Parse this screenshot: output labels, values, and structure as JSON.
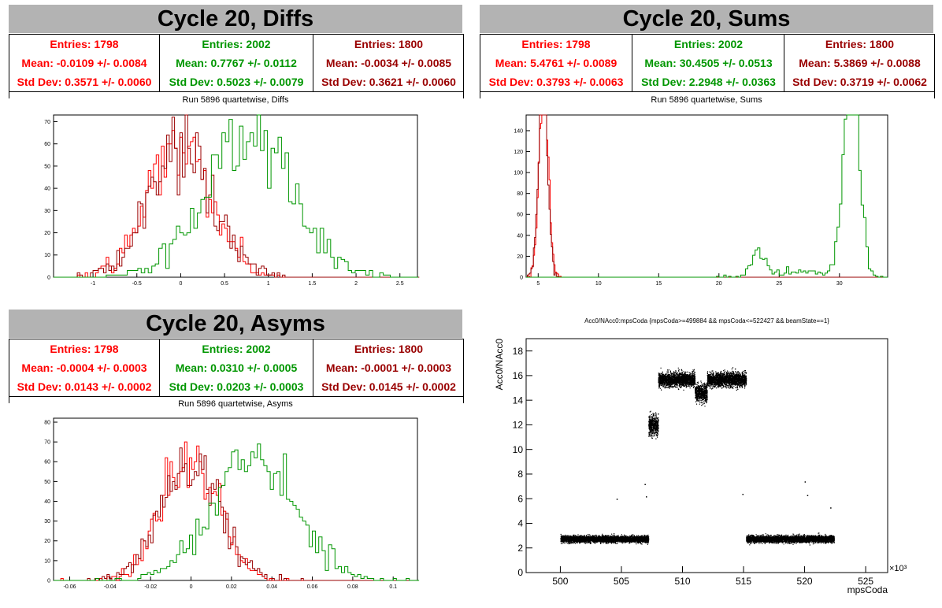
{
  "colors": {
    "red": "#ff0000",
    "green": "#009600",
    "darkred": "#990000",
    "black": "#000000",
    "title_bg": "#b3b3b3"
  },
  "panels": [
    {
      "id": "diffs",
      "title": "Cycle 20, Diffs",
      "stats": [
        {
          "entries": "Entries: 1798",
          "mean": "Mean: -0.0109 +/- 0.0084",
          "std": "Std Dev: 0.3571 +/- 0.0060",
          "color": "#ff0000"
        },
        {
          "entries": "Entries: 2002",
          "mean": "Mean: 0.7767 +/- 0.0112",
          "std": "Std Dev: 0.5023 +/- 0.0079",
          "color": "#009600"
        },
        {
          "entries": "Entries: 1800",
          "mean": "Mean: -0.0034 +/- 0.0085",
          "std": "Std Dev: 0.3621 +/- 0.0060",
          "color": "#990000"
        }
      ],
      "subtitle": "Run 5896 quartetwise, Diffs"
    },
    {
      "id": "sums",
      "title": "Cycle 20, Sums",
      "stats": [
        {
          "entries": "Entries: 1798",
          "mean": "Mean: 5.4761 +/- 0.0089",
          "std": "Std Dev: 0.3793 +/- 0.0063",
          "color": "#ff0000"
        },
        {
          "entries": "Entries: 2002",
          "mean": "Mean: 30.4505 +/- 0.0513",
          "std": "Std Dev: 2.2948 +/- 0.0363",
          "color": "#009600"
        },
        {
          "entries": "Entries: 1800",
          "mean": "Mean: 5.3869 +/- 0.0088",
          "std": "Std Dev: 0.3719 +/- 0.0062",
          "color": "#990000"
        }
      ],
      "subtitle": "Run 5896 quartetwise, Sums"
    },
    {
      "id": "asyms",
      "title": "Cycle 20, Asyms",
      "stats": [
        {
          "entries": "Entries: 1798",
          "mean": "Mean: -0.0004 +/- 0.0003",
          "std": "Std Dev: 0.0143 +/- 0.0002",
          "color": "#ff0000"
        },
        {
          "entries": "Entries: 2002",
          "mean": "Mean: 0.0310 +/- 0.0005",
          "std": "Std Dev: 0.0203 +/- 0.0003",
          "color": "#009600"
        },
        {
          "entries": "Entries: 1800",
          "mean": "Mean: -0.0001 +/- 0.0003",
          "std": "Std Dev: 0.0145 +/- 0.0002",
          "color": "#990000"
        }
      ],
      "subtitle": "Run 5896 quartetwise, Asyms"
    }
  ],
  "chart_data": [
    {
      "id": "diffs",
      "type": "histogram",
      "xlim": [
        -1.45,
        2.7
      ],
      "ylim": [
        0,
        73
      ],
      "x_ticks": [
        -1,
        -0.5,
        0,
        0.5,
        1,
        1.5,
        2,
        2.5
      ],
      "y_ticks": [
        0,
        10,
        20,
        30,
        40,
        50,
        60,
        70
      ],
      "series": [
        {
          "color": "#ff0000",
          "mean": -0.0109,
          "std": 0.3571,
          "entries": 1798,
          "bin_width": 0.03
        },
        {
          "color": "#990000",
          "mean": -0.0034,
          "std": 0.3621,
          "entries": 1800,
          "bin_width": 0.03
        },
        {
          "color": "#009600",
          "mean": 0.7767,
          "std": 0.5023,
          "entries": 2002,
          "bin_width": 0.04
        }
      ]
    },
    {
      "id": "sums",
      "type": "histogram",
      "xlim": [
        4,
        34
      ],
      "ylim": [
        0,
        155
      ],
      "x_ticks": [
        5,
        10,
        15,
        20,
        25,
        30
      ],
      "y_ticks": [
        0,
        20,
        40,
        60,
        80,
        100,
        120,
        140
      ],
      "series": [
        {
          "color": "#ff0000",
          "mean": 5.4761,
          "std": 0.3793,
          "entries": 1798,
          "bin_width": 0.1
        },
        {
          "color": "#990000",
          "mean": 5.3869,
          "std": 0.3719,
          "entries": 1800,
          "bin_width": 0.1
        },
        {
          "color": "#009600",
          "entries": 2002,
          "bin_width": 0.2,
          "components": [
            {
              "mean": 31.0,
              "std": 0.6,
              "weight": 0.83
            },
            {
              "mean": 23.3,
              "std": 0.55,
              "weight": 0.08
            },
            {
              "mean": 27.0,
              "std": 2.5,
              "weight": 0.09
            }
          ]
        }
      ]
    },
    {
      "id": "asyms",
      "type": "histogram",
      "xlim": [
        -0.068,
        0.112
      ],
      "ylim": [
        0,
        82
      ],
      "x_ticks": [
        -0.06,
        -0.04,
        -0.02,
        0,
        0.02,
        0.04,
        0.06,
        0.08,
        0.1
      ],
      "y_ticks": [
        0,
        10,
        20,
        30,
        40,
        50,
        60,
        70,
        80
      ],
      "series": [
        {
          "color": "#ff0000",
          "mean": -0.0004,
          "std": 0.0143,
          "entries": 1798,
          "bin_width": 0.0012
        },
        {
          "color": "#990000",
          "mean": -0.0001,
          "std": 0.0145,
          "entries": 1800,
          "bin_width": 0.0012
        },
        {
          "color": "#009600",
          "mean": 0.031,
          "std": 0.0203,
          "entries": 2002,
          "bin_width": 0.0016
        }
      ]
    },
    {
      "id": "acc0",
      "type": "scatter",
      "title": "Acc0/NAcc0:mpsCoda {mpsCoda>=499884 && mpsCoda<=522427 && beamState==1}",
      "xlabel": "mpsCoda",
      "ylabel": "Acc0/NAcc0",
      "x_exponent": "×10³",
      "xlim": [
        497.2,
        526.8
      ],
      "ylim": [
        0,
        19
      ],
      "x_ticks": [
        500,
        505,
        510,
        515,
        520,
        525
      ],
      "y_ticks": [
        0,
        2,
        4,
        6,
        8,
        10,
        12,
        14,
        16,
        18
      ],
      "segments": [
        {
          "x": [
            500,
            507.2
          ],
          "y": 2.75,
          "spread": 0.25
        },
        {
          "x": [
            507.2,
            508.0
          ],
          "y": 12.0,
          "spread": 0.75
        },
        {
          "x": [
            508.0,
            511.0
          ],
          "y": 15.7,
          "spread": 0.55
        },
        {
          "x": [
            511.0,
            512.0
          ],
          "y": 14.6,
          "spread": 0.7
        },
        {
          "x": [
            512.0,
            515.2
          ],
          "y": 15.7,
          "spread": 0.55
        },
        {
          "x": [
            515.2,
            522.4
          ],
          "y": 2.75,
          "spread": 0.25
        }
      ],
      "outliers": [
        [
          504.6,
          6.0
        ],
        [
          506.9,
          7.2
        ],
        [
          507.0,
          6.2
        ],
        [
          514.9,
          6.4
        ],
        [
          520.0,
          7.4
        ],
        [
          520.2,
          6.3
        ],
        [
          522.1,
          5.3
        ],
        [
          509.2,
          15.9
        ]
      ]
    }
  ]
}
